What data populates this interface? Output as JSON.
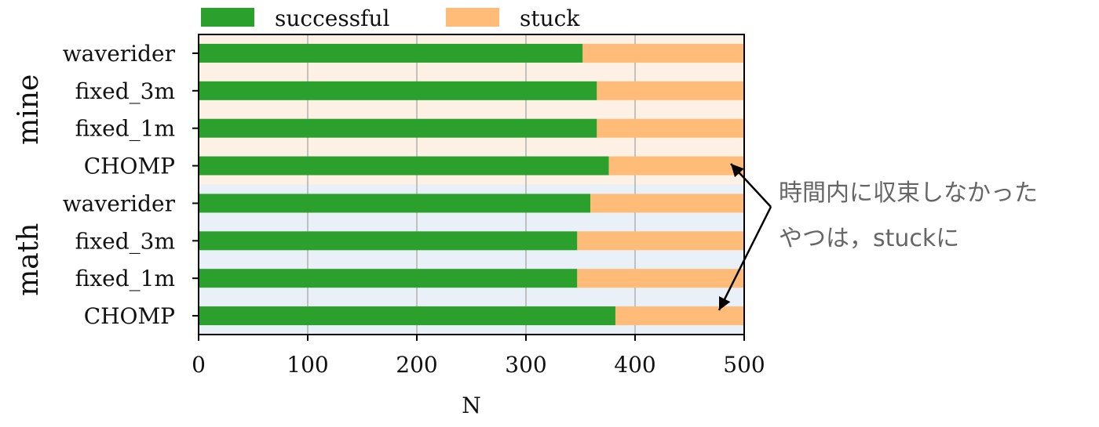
{
  "chart_data": {
    "type": "bar",
    "orientation": "horizontal",
    "stacked": true,
    "xlabel": "N",
    "xlim": [
      0,
      500
    ],
    "xticks": [
      0,
      100,
      200,
      300,
      400,
      500
    ],
    "grid": true,
    "legend_position": "top",
    "groups": [
      {
        "name": "mine",
        "background": "#fdf1e6",
        "categories": [
          "waverider",
          "fixed_3m",
          "fixed_1m",
          "CHOMP"
        ]
      },
      {
        "name": "math",
        "background": "#e9f0f8",
        "categories": [
          "waverider",
          "fixed_3m",
          "fixed_1m",
          "CHOMP"
        ]
      }
    ],
    "series": [
      {
        "name": "successful",
        "color": "#2ca02c",
        "values": [
          352,
          365,
          365,
          376,
          359,
          347,
          347,
          382
        ]
      },
      {
        "name": "stuck",
        "color": "#ffbb78",
        "values": [
          148,
          135,
          135,
          124,
          141,
          153,
          153,
          118
        ]
      }
    ],
    "annotation": {
      "lines": [
        "時間内に収束しなかった",
        "やつは，stuckに"
      ]
    }
  }
}
